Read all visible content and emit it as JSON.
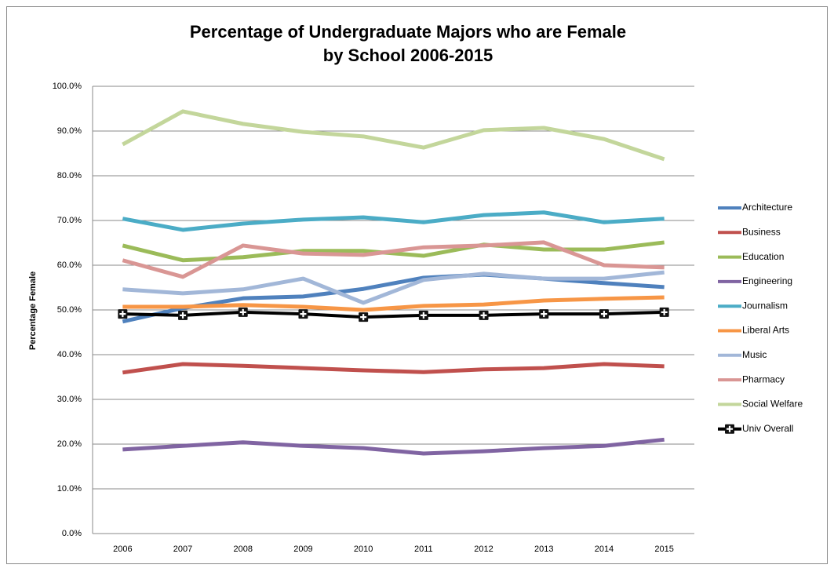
{
  "chart_data": {
    "type": "line",
    "title": [
      "Percentage of Undergraduate Majors who are Female",
      "by School 2006-2015"
    ],
    "y_label": "Percentage Female",
    "categories": [
      "2006",
      "2007",
      "2008",
      "2009",
      "2010",
      "2011",
      "2012",
      "2013",
      "2014",
      "2015"
    ],
    "ylim": [
      0,
      100
    ],
    "yticks": [
      {
        "value": 0,
        "label": "0.0%"
      },
      {
        "value": 10,
        "label": "10.0%"
      },
      {
        "value": 20,
        "label": "20.0%"
      },
      {
        "value": 30,
        "label": "30.0%"
      },
      {
        "value": 40,
        "label": "40.0%"
      },
      {
        "value": 50,
        "label": "50.0%"
      },
      {
        "value": 60,
        "label": "60.0%"
      },
      {
        "value": 70,
        "label": "70.0%"
      },
      {
        "value": 80,
        "label": "80.0%"
      },
      {
        "value": 90,
        "label": "90.0%"
      },
      {
        "value": 100,
        "label": "100.0%"
      }
    ],
    "grid": true,
    "legend": "right",
    "series": [
      {
        "name": "Architecture",
        "color": "#4f81bd",
        "values": [
          47.4,
          50.4,
          52.6,
          53.0,
          54.7,
          57.2,
          57.9,
          57.0,
          56.0,
          55.1
        ]
      },
      {
        "name": "Business",
        "color": "#c0504d",
        "values": [
          36.0,
          37.9,
          37.5,
          37.0,
          36.5,
          36.1,
          36.7,
          37.0,
          37.9,
          37.4
        ]
      },
      {
        "name": "Education",
        "color": "#9bbb59",
        "values": [
          64.4,
          61.1,
          61.8,
          63.2,
          63.2,
          62.1,
          64.6,
          63.5,
          63.5,
          65.1
        ]
      },
      {
        "name": "Engineering",
        "color": "#8064a2",
        "values": [
          18.8,
          19.6,
          20.4,
          19.6,
          19.1,
          17.9,
          18.4,
          19.1,
          19.6,
          21.0
        ]
      },
      {
        "name": "Journalism",
        "color": "#4bacc6",
        "values": [
          70.4,
          67.9,
          69.3,
          70.2,
          70.7,
          69.6,
          71.2,
          71.8,
          69.6,
          70.4
        ]
      },
      {
        "name": "Liberal Arts",
        "color": "#f79646",
        "values": [
          50.7,
          50.7,
          51.1,
          50.7,
          50.0,
          50.9,
          51.2,
          52.1,
          52.5,
          52.8
        ]
      },
      {
        "name": "Music",
        "color": "#a2b7d8",
        "values": [
          54.6,
          53.7,
          54.6,
          57.0,
          51.6,
          56.7,
          58.1,
          57.0,
          57.0,
          58.4
        ]
      },
      {
        "name": "Pharmacy",
        "color": "#d99694",
        "values": [
          61.1,
          57.4,
          64.4,
          62.6,
          62.3,
          64.0,
          64.4,
          65.1,
          60.0,
          59.5
        ]
      },
      {
        "name": "Social Welfare",
        "color": "#c3d69b",
        "values": [
          87.0,
          94.4,
          91.6,
          89.8,
          88.8,
          86.3,
          90.2,
          90.7,
          88.2,
          83.7
        ]
      },
      {
        "name": "Univ Overall",
        "color": "#000000",
        "marker": "square-cross",
        "values": [
          49.1,
          48.8,
          49.5,
          49.1,
          48.4,
          48.8,
          48.8,
          49.1,
          49.1,
          49.5
        ]
      }
    ]
  }
}
